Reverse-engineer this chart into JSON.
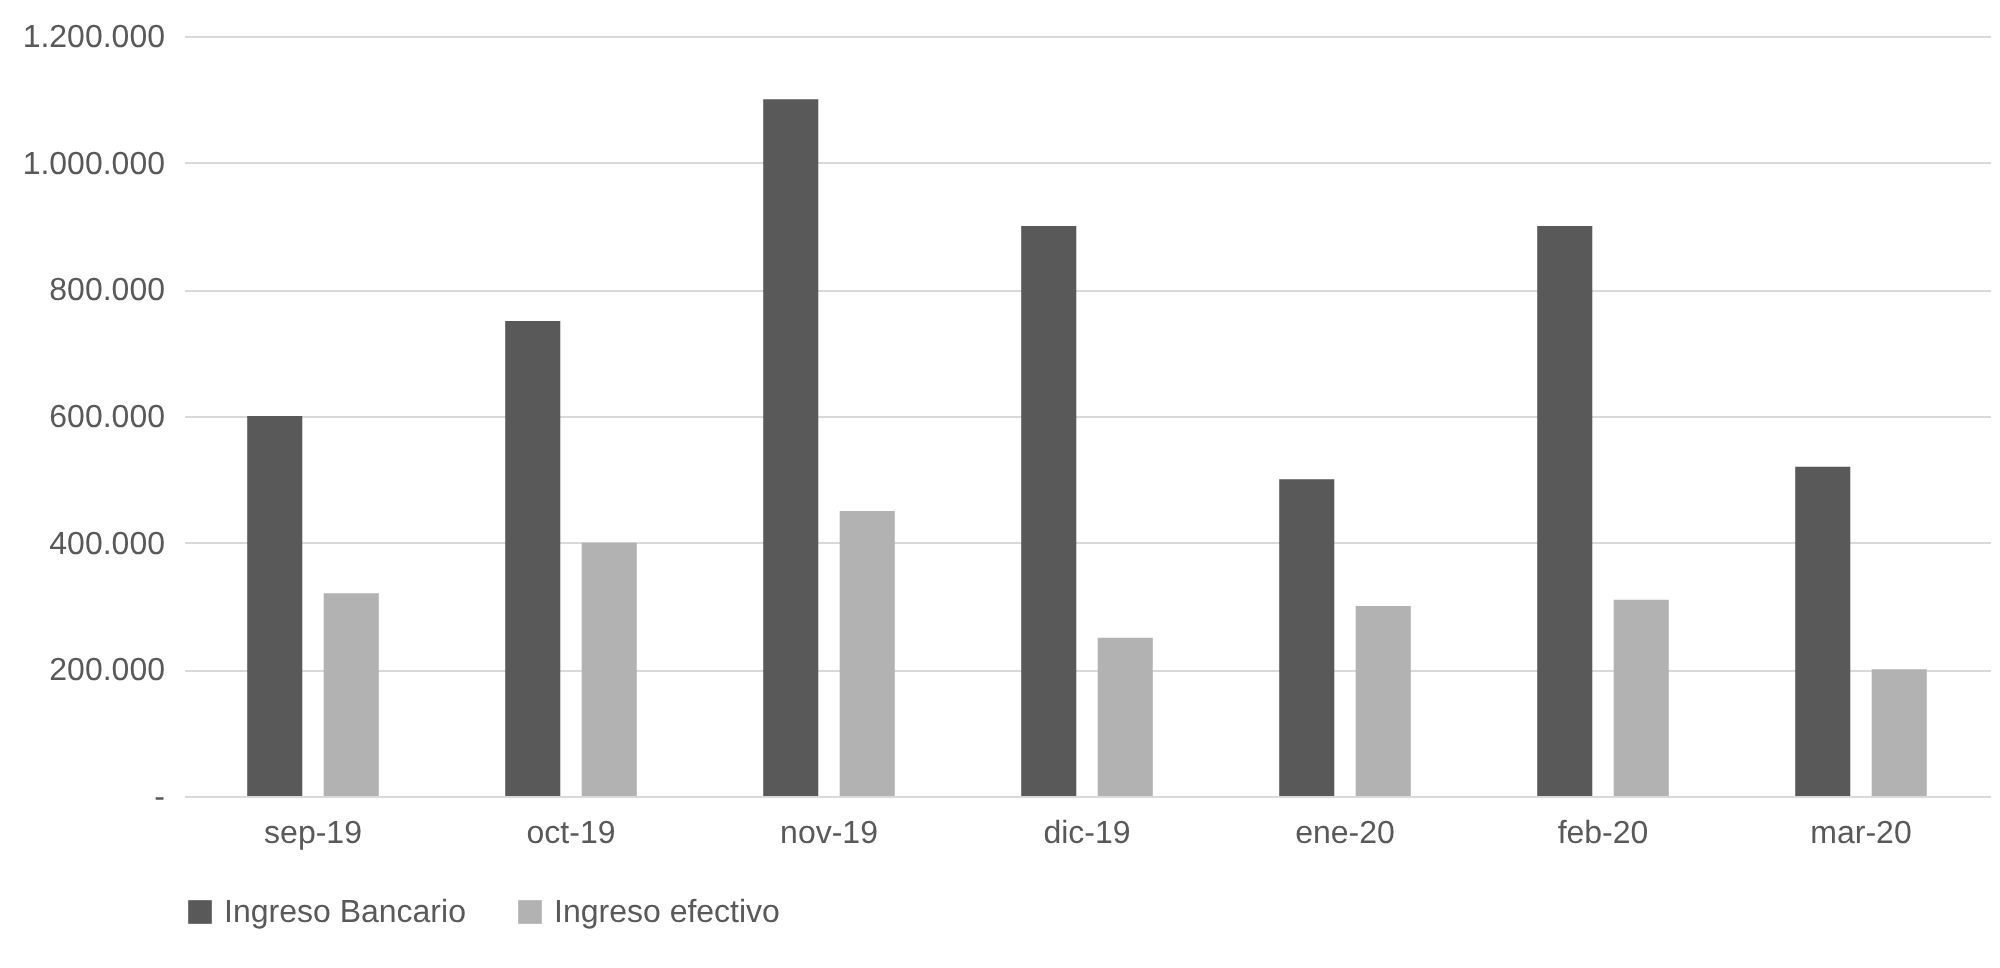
{
  "chart_data": {
    "type": "bar",
    "categories": [
      "sep-19",
      "oct-19",
      "nov-19",
      "dic-19",
      "ene-20",
      "feb-20",
      "mar-20"
    ],
    "series": [
      {
        "name": "Ingreso Bancario",
        "color": "#595959",
        "values": [
          600000,
          750000,
          1100000,
          900000,
          500000,
          900000,
          520000
        ]
      },
      {
        "name": "Ingreso efectivo",
        "color": "#b2b2b2",
        "values": [
          320000,
          400000,
          450000,
          250000,
          300000,
          310000,
          200000
        ]
      }
    ],
    "ylim": [
      0,
      1200000
    ],
    "yticks": [
      {
        "value": 0,
        "label": "-"
      },
      {
        "value": 200000,
        "label": "200.000"
      },
      {
        "value": 400000,
        "label": "400.000"
      },
      {
        "value": 600000,
        "label": "600.000"
      },
      {
        "value": 800000,
        "label": "800.000"
      },
      {
        "value": 1000000,
        "label": "1.000.000"
      },
      {
        "value": 1200000,
        "label": "1.200.000"
      }
    ],
    "grid": "y",
    "legend": "bottom"
  }
}
